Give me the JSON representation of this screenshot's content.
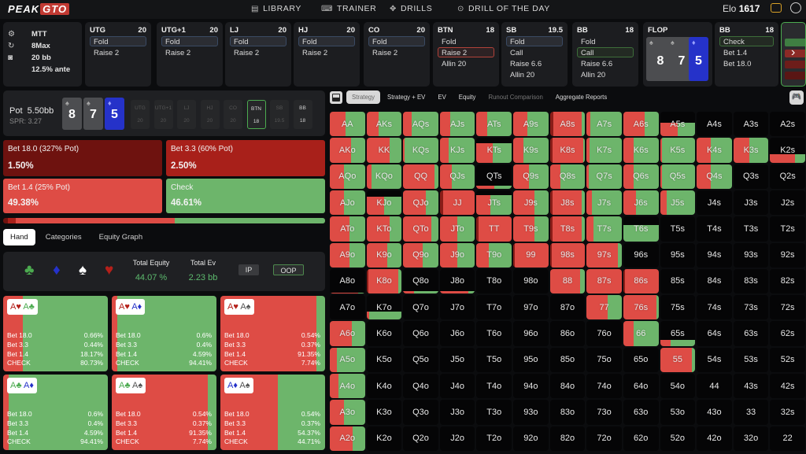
{
  "topbar": {
    "logo_left": "PEAK",
    "logo_right": "GTO",
    "nav": [
      {
        "label": "LIBRARY",
        "icon": "book-icon"
      },
      {
        "label": "TRAINER",
        "icon": "gamepad-icon"
      },
      {
        "label": "DRILLS",
        "icon": "target-icon"
      },
      {
        "label": "DRILL OF THE DAY",
        "icon": "circle-dot-icon"
      }
    ],
    "elo_label": "Elo",
    "elo_value": "1617"
  },
  "game_info": {
    "format": "MTT",
    "table": "8Max",
    "stack": "20 bb",
    "ante": "12.5% ante"
  },
  "positions": [
    {
      "name": "UTG",
      "stack": "20",
      "actions": [
        "Fold",
        "Raise 2"
      ],
      "selected": 0,
      "sel_color": "blue"
    },
    {
      "name": "UTG+1",
      "stack": "20",
      "actions": [
        "Fold",
        "Raise 2"
      ],
      "selected": 0,
      "sel_color": "blue"
    },
    {
      "name": "LJ",
      "stack": "20",
      "actions": [
        "Fold",
        "Raise 2"
      ],
      "selected": 0,
      "sel_color": "blue"
    },
    {
      "name": "HJ",
      "stack": "20",
      "actions": [
        "Fold",
        "Raise 2"
      ],
      "selected": 0,
      "sel_color": "blue"
    },
    {
      "name": "CO",
      "stack": "20",
      "actions": [
        "Fold",
        "Raise 2"
      ],
      "selected": 0,
      "sel_color": "blue"
    },
    {
      "name": "BTN",
      "stack": "18",
      "actions": [
        "Fold",
        "Raise 2",
        "Allin 20"
      ],
      "selected": 1,
      "sel_color": "red"
    },
    {
      "name": "SB",
      "stack": "19.5",
      "actions": [
        "Fold",
        "Call",
        "Raise 6.6",
        "Allin 20"
      ],
      "selected": 0,
      "sel_color": "blue"
    },
    {
      "name": "BB",
      "stack": "18",
      "actions": [
        "Fold",
        "Call",
        "Raise 6.6",
        "Allin 20"
      ],
      "selected": 1,
      "sel_color": "green"
    }
  ],
  "flop": {
    "label": "FLOP",
    "cards": [
      {
        "rank": "8",
        "suit": "♠",
        "color": "gray"
      },
      {
        "rank": "7",
        "suit": "♠",
        "color": "gray"
      },
      {
        "rank": "5",
        "suit": "♦",
        "color": "blue"
      }
    ]
  },
  "bb_flop": {
    "name": "BB",
    "stack": "18",
    "actions": [
      "Check",
      "Bet 1.4",
      "Bet 18.0"
    ],
    "selected": 0
  },
  "next_arrow": "›",
  "pot": {
    "label": "Pot",
    "value": "5.50bb",
    "spr": "SPR: 3.27"
  },
  "seats": [
    {
      "name": "UTG",
      "stack": "20"
    },
    {
      "name": "UTG+1",
      "stack": "20"
    },
    {
      "name": "LJ",
      "stack": "20"
    },
    {
      "name": "HJ",
      "stack": "20"
    },
    {
      "name": "CO",
      "stack": "20"
    },
    {
      "name": "BTN",
      "stack": "18",
      "active": true
    },
    {
      "name": "SB",
      "stack": "19.5"
    },
    {
      "name": "BB",
      "stack": "18",
      "lit": true
    }
  ],
  "actions": [
    {
      "label": "Bet 18.0 (327% Pot)",
      "pct": "1.50%",
      "color": "#6e120f"
    },
    {
      "label": "Bet 3.3 (60% Pot)",
      "pct": "2.50%",
      "color": "#a8201a"
    },
    {
      "label": "Bet 1.4 (25% Pot)",
      "pct": "49.38%",
      "color": "#de4c45"
    },
    {
      "label": "Check",
      "pct": "46.61%",
      "color": "#6db56b"
    }
  ],
  "left_tabs": [
    "Hand",
    "Categories",
    "Equity Graph"
  ],
  "equity": {
    "suits": [
      "♣",
      "♦",
      "♠",
      "♥"
    ],
    "total_equity_label": "Total Equity",
    "total_equity": "44.07 %",
    "total_ev_label": "Total Ev",
    "total_ev": "2.23 bb",
    "ip": "IP",
    "oop": "OOP"
  },
  "combos": [
    {
      "c1": "A",
      "s1": "♥",
      "c2": "A",
      "s2": "♣",
      "red": 0.19,
      "rows": [
        [
          "Bet 18.0",
          "0.66%"
        ],
        [
          "Bet 3.3",
          "0.44%"
        ],
        [
          "Bet 1.4",
          "18.17%"
        ],
        [
          "CHECK",
          "80.73%"
        ]
      ]
    },
    {
      "c1": "A",
      "s1": "♥",
      "c2": "A",
      "s2": "♦",
      "red": 0.05,
      "rows": [
        [
          "Bet 18.0",
          "0.6%"
        ],
        [
          "Bet 3.3",
          "0.4%"
        ],
        [
          "Bet 1.4",
          "4.59%"
        ],
        [
          "CHECK",
          "94.41%"
        ]
      ]
    },
    {
      "c1": "A",
      "s1": "♥",
      "c2": "A",
      "s2": "♠",
      "red": 0.92,
      "rows": [
        [
          "Bet 18.0",
          "0.54%"
        ],
        [
          "Bet 3.3",
          "0.37%"
        ],
        [
          "Bet 1.4",
          "91.35%"
        ],
        [
          "CHECK",
          "7.74%"
        ]
      ]
    },
    {
      "c1": "A",
      "s1": "♣",
      "c2": "A",
      "s2": "♦",
      "red": 0.05,
      "rows": [
        [
          "Bet 18.0",
          "0.6%"
        ],
        [
          "Bet 3.3",
          "0.4%"
        ],
        [
          "Bet 1.4",
          "4.59%"
        ],
        [
          "CHECK",
          "94.41%"
        ]
      ]
    },
    {
      "c1": "A",
      "s1": "♣",
      "c2": "A",
      "s2": "♠",
      "red": 0.92,
      "rows": [
        [
          "Bet 18.0",
          "0.54%"
        ],
        [
          "Bet 3.3",
          "0.37%"
        ],
        [
          "Bet 1.4",
          "91.35%"
        ],
        [
          "CHECK",
          "7.74%"
        ]
      ]
    },
    {
      "c1": "A",
      "s1": "♦",
      "c2": "A",
      "s2": "♠",
      "red": 0.55,
      "rows": [
        [
          "Bet 18.0",
          "0.54%"
        ],
        [
          "Bet 3.3",
          "0.37%"
        ],
        [
          "Bet 1.4",
          "54.37%"
        ],
        [
          "CHECK",
          "44.71%"
        ]
      ]
    }
  ],
  "right_tabs": [
    "Strategy",
    "Strategy + EV",
    "EV",
    "Equity",
    "Runout Comparison",
    "Aggregate Reports"
  ],
  "grid": [
    [
      [
        "AA",
        1,
        0.45
      ],
      [
        "AKs",
        1,
        0.35
      ],
      [
        "AQs",
        1,
        0.25
      ],
      [
        "AJs",
        1,
        0.3
      ],
      [
        "ATs",
        1,
        0.3
      ],
      [
        "A9s",
        1,
        0.4
      ],
      [
        "A8s",
        1,
        0.9,
        0.1
      ],
      [
        "A7s",
        1,
        0.1
      ],
      [
        "A6s",
        1,
        0.6
      ],
      [
        "A5s",
        0.55,
        0.5
      ],
      [
        "A4s",
        0,
        0
      ],
      [
        "A3s",
        0,
        0
      ],
      [
        "A2s",
        0,
        0
      ]
    ],
    [
      [
        "AKo",
        1,
        0.6
      ],
      [
        "KK",
        1,
        0.65
      ],
      [
        "KQs",
        1,
        0.05
      ],
      [
        "KJs",
        1,
        0.25
      ],
      [
        "KTs",
        0.8,
        0.45
      ],
      [
        "K9s",
        1,
        0.3
      ],
      [
        "K8s",
        1,
        0.95,
        0.08
      ],
      [
        "K7s",
        1,
        0.08
      ],
      [
        "K6s",
        1,
        0.3
      ],
      [
        "K5s",
        1,
        0.05
      ],
      [
        "K4s",
        1,
        0.4
      ],
      [
        "K3s",
        1,
        0.45
      ],
      [
        "K2s",
        0.35,
        0.7
      ]
    ],
    [
      [
        "AQo",
        1,
        0.4
      ],
      [
        "KQo",
        1,
        0.15
      ],
      [
        "QQ",
        1,
        0.9
      ],
      [
        "QJs",
        1,
        0.35
      ],
      [
        "QTs",
        0.12,
        0.5
      ],
      [
        "Q9s",
        1,
        0.45
      ],
      [
        "Q8s",
        1,
        0.3
      ],
      [
        "Q7s",
        1,
        0.05
      ],
      [
        "Q6s",
        1,
        0.3
      ],
      [
        "Q5s",
        1,
        0.05
      ],
      [
        "Q4s",
        1,
        0.4
      ],
      [
        "Q3s",
        0,
        0
      ],
      [
        "Q2s",
        0,
        0
      ]
    ],
    [
      [
        "AJo",
        1,
        0.4
      ],
      [
        "KJo",
        0.75,
        0.5
      ],
      [
        "QJo",
        1,
        0.65
      ],
      [
        "JJ",
        1,
        1,
        0.1
      ],
      [
        "JTs",
        0.8,
        0.4
      ],
      [
        "J9s",
        1,
        0.6
      ],
      [
        "J8s",
        1,
        0.9,
        0.08
      ],
      [
        "J7s",
        1,
        0.15
      ],
      [
        "J6s",
        1,
        0.35
      ],
      [
        "J5s",
        1,
        0.2
      ],
      [
        "J4s",
        0,
        0
      ],
      [
        "J3s",
        0,
        0
      ],
      [
        "J2s",
        0,
        0
      ]
    ],
    [
      [
        "ATo",
        1,
        0.55
      ],
      [
        "KTo",
        1,
        0.65
      ],
      [
        "QTo",
        1,
        0.8
      ],
      [
        "JTo",
        1,
        0.5
      ],
      [
        "TT",
        1,
        1,
        0.05
      ],
      [
        "T9s",
        1,
        0.6
      ],
      [
        "T8s",
        1,
        0.9,
        0.08
      ],
      [
        "T7s",
        1,
        0.2
      ],
      [
        "T6s",
        0.65,
        0
      ],
      [
        "T5s",
        0,
        0
      ],
      [
        "T4s",
        0,
        0
      ],
      [
        "T3s",
        0,
        0
      ],
      [
        "T2s",
        0,
        0
      ]
    ],
    [
      [
        "A9o",
        1,
        0.55
      ],
      [
        "K9o",
        1,
        0.6
      ],
      [
        "Q9o",
        1,
        0.55
      ],
      [
        "J9o",
        1,
        0.5
      ],
      [
        "T9o",
        1,
        0.35
      ],
      [
        "99",
        1,
        1,
        0.05
      ],
      [
        "98s",
        1,
        1,
        0.05
      ],
      [
        "97s",
        1,
        0.9
      ],
      [
        "96s",
        0,
        0
      ],
      [
        "95s",
        0,
        0
      ],
      [
        "94s",
        0,
        0
      ],
      [
        "93s",
        0,
        0
      ],
      [
        "92s",
        0,
        0
      ]
    ],
    [
      [
        "A8o",
        0.05,
        0.8
      ],
      [
        "K8o",
        1,
        0.9,
        0.05
      ],
      [
        "Q8o",
        0.1,
        0.3
      ],
      [
        "J8o",
        0.1,
        0.8
      ],
      [
        "T8o",
        0,
        0
      ],
      [
        "98o",
        0,
        0
      ],
      [
        "88",
        1,
        0.85
      ],
      [
        "87s",
        1,
        1
      ],
      [
        "86s",
        1,
        1,
        0.05
      ],
      [
        "85s",
        0,
        0
      ],
      [
        "84s",
        0,
        0
      ],
      [
        "83s",
        0,
        0
      ],
      [
        "82s",
        0,
        0
      ]
    ],
    [
      [
        "A7o",
        0,
        0
      ],
      [
        "K7o",
        0.35,
        0.08
      ],
      [
        "Q7o",
        0,
        0
      ],
      [
        "J7o",
        0,
        0
      ],
      [
        "T7o",
        0,
        0
      ],
      [
        "97o",
        0,
        0
      ],
      [
        "87o",
        0,
        0
      ],
      [
        "77",
        1,
        0.6
      ],
      [
        "76s",
        1,
        0.95
      ],
      [
        "75s",
        0,
        0
      ],
      [
        "74s",
        0,
        0
      ],
      [
        "73s",
        0,
        0
      ],
      [
        "72s",
        0,
        0
      ]
    ],
    [
      [
        "A6o",
        1,
        0.62
      ],
      [
        "K6o",
        0,
        0
      ],
      [
        "Q6o",
        0,
        0
      ],
      [
        "J6o",
        0,
        0
      ],
      [
        "T6o",
        0,
        0
      ],
      [
        "96o",
        0,
        0
      ],
      [
        "86o",
        0,
        0
      ],
      [
        "76o",
        0,
        0
      ],
      [
        "66",
        1,
        0.3
      ],
      [
        "65s",
        0.25,
        0.3
      ],
      [
        "64s",
        0,
        0
      ],
      [
        "63s",
        0,
        0
      ],
      [
        "62s",
        0,
        0
      ]
    ],
    [
      [
        "A5o",
        1,
        0.2
      ],
      [
        "K5o",
        0,
        0
      ],
      [
        "Q5o",
        0,
        0
      ],
      [
        "J5o",
        0,
        0
      ],
      [
        "T5o",
        0,
        0
      ],
      [
        "95o",
        0,
        0
      ],
      [
        "85o",
        0,
        0
      ],
      [
        "75o",
        0,
        0
      ],
      [
        "65o",
        0,
        0
      ],
      [
        "55",
        1,
        0.9
      ],
      [
        "54s",
        0,
        0
      ],
      [
        "53s",
        0,
        0
      ],
      [
        "52s",
        0,
        0
      ]
    ],
    [
      [
        "A4o",
        1,
        0.25
      ],
      [
        "K4o",
        0,
        0
      ],
      [
        "Q4o",
        0,
        0
      ],
      [
        "J4o",
        0,
        0
      ],
      [
        "T4o",
        0,
        0
      ],
      [
        "94o",
        0,
        0
      ],
      [
        "84o",
        0,
        0
      ],
      [
        "74o",
        0,
        0
      ],
      [
        "64o",
        0,
        0
      ],
      [
        "54o",
        0,
        0
      ],
      [
        "44",
        0,
        0
      ],
      [
        "43s",
        0,
        0
      ],
      [
        "42s",
        0,
        0
      ]
    ],
    [
      [
        "A3o",
        1,
        0.4
      ],
      [
        "K3o",
        0,
        0
      ],
      [
        "Q3o",
        0,
        0
      ],
      [
        "J3o",
        0,
        0
      ],
      [
        "T3o",
        0,
        0
      ],
      [
        "93o",
        0,
        0
      ],
      [
        "83o",
        0,
        0
      ],
      [
        "73o",
        0,
        0
      ],
      [
        "63o",
        0,
        0
      ],
      [
        "53o",
        0,
        0
      ],
      [
        "43o",
        0,
        0
      ],
      [
        "33",
        0,
        0
      ],
      [
        "32s",
        0,
        0
      ]
    ],
    [
      [
        "A2o",
        1,
        0.65
      ],
      [
        "K2o",
        0,
        0
      ],
      [
        "Q2o",
        0,
        0
      ],
      [
        "J2o",
        0,
        0
      ],
      [
        "T2o",
        0,
        0
      ],
      [
        "92o",
        0,
        0
      ],
      [
        "82o",
        0,
        0
      ],
      [
        "72o",
        0,
        0
      ],
      [
        "62o",
        0,
        0
      ],
      [
        "52o",
        0,
        0
      ],
      [
        "42o",
        0,
        0
      ],
      [
        "32o",
        0,
        0
      ],
      [
        "22",
        0,
        0
      ]
    ]
  ],
  "colors": {
    "bet_small": "#de4c45",
    "check": "#6db56b",
    "bet_big": "#8a1d18",
    "accent_green": "#5dba6e",
    "flop_blue": "#2532c9"
  }
}
